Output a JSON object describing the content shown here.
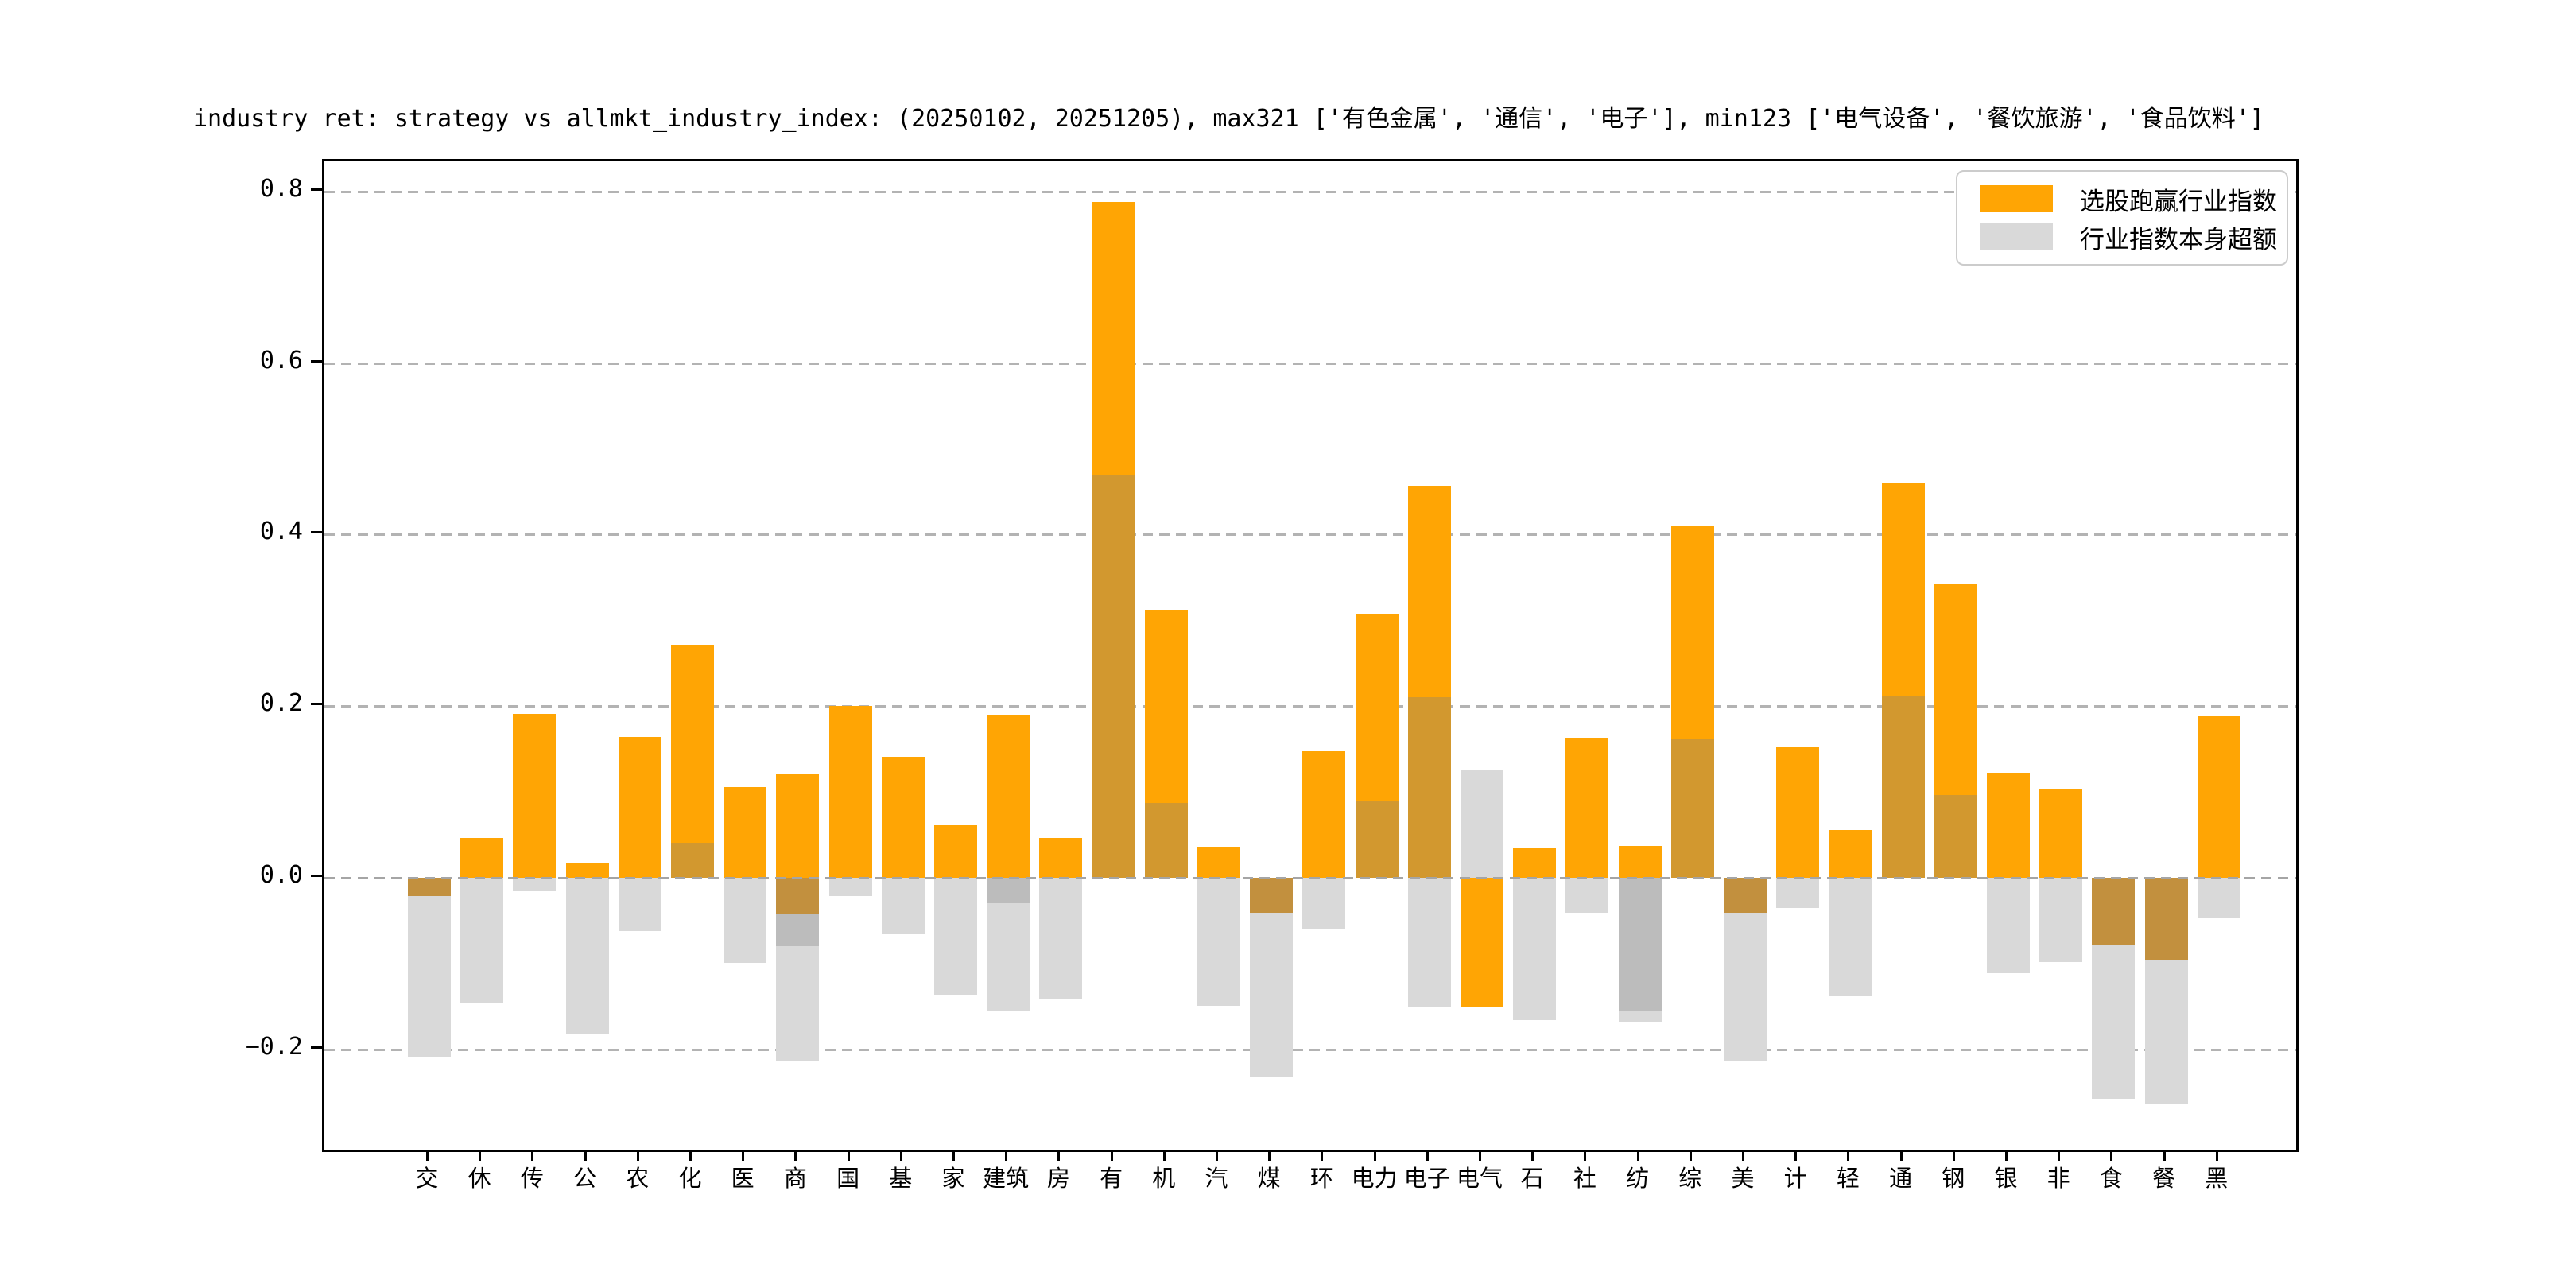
{
  "title": "industry ret: strategy vs allmkt_industry_index: (20250102, 20251205), max321 ['有色金属', '通信', '电子'], min123 ['电气设备', '餐饮旅游', '食品饮料']",
  "legend": {
    "items": [
      {
        "label": "选股跑赢行业指数",
        "color": "#FFA504"
      },
      {
        "label": "行业指数本身超额",
        "color": "#D9D9D9"
      }
    ]
  },
  "colors": {
    "orange": "#FFA504",
    "overlap_pos": "#D2982F",
    "overlap_neg": "#C2903E",
    "gray": "#D9D9D9",
    "gray_dark": "#BCBCBC",
    "grid": "#B3B3B3",
    "zero_line": "#A5A5A5",
    "spine": "#000000",
    "text": "#000000",
    "legend_border": "#CCCCCC"
  },
  "chart_data": {
    "type": "bar",
    "title": "industry ret: strategy vs allmkt_industry_index: (20250102, 20251205), max321 ['有色金属', '通信', '电子'], min123 ['电气设备', '餐饮旅游', '食品饮料']",
    "xlabel": "",
    "ylabel": "",
    "ylim": [
      -0.317,
      0.835
    ],
    "grid": "horizontal dashed",
    "legend_position": "upper right",
    "y_ticks": [
      0.8,
      0.6,
      0.4,
      0.2,
      0.0,
      -0.2
    ],
    "y_tick_labels": [
      "0.8",
      "0.6",
      "0.4",
      "0.2",
      "0.0",
      "−0.2"
    ],
    "categories": [
      "交",
      "休",
      "传",
      "公",
      "农",
      "化",
      "医",
      "商",
      "国",
      "基",
      "家",
      "建筑",
      "房",
      "有",
      "机",
      "汽",
      "煤",
      "环",
      "电力",
      "电子",
      "电气",
      "石",
      "社",
      "纺",
      "综",
      "美",
      "计",
      "轻",
      "通",
      "钢",
      "银",
      "非",
      "食",
      "餐",
      "黑"
    ],
    "series": [
      {
        "name": "选股跑赢行业指数",
        "values": [
          -0.021,
          0.046,
          0.191,
          0.018,
          0.164,
          0.272,
          0.106,
          0.121,
          0.2,
          0.141,
          0.061,
          0.19,
          0.046,
          0.788,
          0.312,
          0.036,
          -0.041,
          0.148,
          0.308,
          0.457,
          -0.15,
          0.035,
          0.163,
          0.037,
          0.41,
          -0.041,
          0.152,
          0.056,
          0.46,
          0.342,
          0.122,
          0.104,
          -0.078,
          -0.095,
          0.189
        ]
      },
      {
        "name": "行业指数本身超额",
        "values": [
          -0.209,
          -0.146,
          -0.016,
          -0.183,
          -0.062,
          0.041,
          -0.099,
          -0.214,
          -0.021,
          -0.066,
          -0.137,
          -0.155,
          -0.142,
          0.469,
          0.087,
          -0.149,
          -0.06,
          -0.233,
          0.09,
          0.21,
          0.125,
          -0.166,
          -0.041,
          -0.169,
          0.162,
          -0.214,
          -0.035,
          -0.138,
          0.211,
          0.096,
          -0.111,
          -0.098,
          -0.258,
          -0.264,
          -0.046
        ]
      }
    ],
    "bars": [
      {
        "label": "交",
        "segments": [
          [
            "on",
            -0.021,
            0
          ],
          [
            "g",
            -0.209,
            -0.021
          ]
        ]
      },
      {
        "label": "休",
        "segments": [
          [
            "o",
            0,
            0.046
          ],
          [
            "g",
            -0.146,
            0
          ]
        ]
      },
      {
        "label": "传",
        "segments": [
          [
            "o",
            0,
            0.191
          ],
          [
            "g",
            -0.016,
            0
          ]
        ]
      },
      {
        "label": "公",
        "segments": [
          [
            "o",
            0,
            0.018
          ],
          [
            "g",
            -0.183,
            0
          ]
        ]
      },
      {
        "label": "农",
        "segments": [
          [
            "o",
            0,
            0.164
          ],
          [
            "g",
            -0.062,
            0
          ]
        ]
      },
      {
        "label": "化",
        "segments": [
          [
            "op",
            0,
            0.041
          ],
          [
            "o",
            0.041,
            0.272
          ]
        ]
      },
      {
        "label": "医",
        "segments": [
          [
            "o",
            0,
            0.106
          ],
          [
            "g",
            -0.099,
            0
          ]
        ]
      },
      {
        "label": "商",
        "segments": [
          [
            "o",
            0,
            0.121
          ],
          [
            "on",
            -0.043,
            0
          ],
          [
            "gd",
            -0.08,
            -0.043
          ],
          [
            "g",
            -0.214,
            -0.08
          ]
        ]
      },
      {
        "label": "国",
        "segments": [
          [
            "o",
            0,
            0.2
          ],
          [
            "g",
            -0.021,
            0
          ]
        ]
      },
      {
        "label": "基",
        "segments": [
          [
            "o",
            0,
            0.141
          ],
          [
            "g",
            -0.066,
            0
          ]
        ]
      },
      {
        "label": "家",
        "segments": [
          [
            "o",
            0,
            0.061
          ],
          [
            "g",
            -0.137,
            0
          ]
        ]
      },
      {
        "label": "建筑",
        "segments": [
          [
            "o",
            0,
            0.19
          ],
          [
            "gd",
            -0.03,
            0
          ],
          [
            "g",
            -0.155,
            -0.03
          ]
        ]
      },
      {
        "label": "房",
        "segments": [
          [
            "o",
            0,
            0.046
          ],
          [
            "g",
            -0.142,
            0
          ]
        ]
      },
      {
        "label": "有",
        "segments": [
          [
            "op",
            0,
            0.469
          ],
          [
            "o",
            0.469,
            0.788
          ]
        ]
      },
      {
        "label": "机",
        "segments": [
          [
            "op",
            0,
            0.087
          ],
          [
            "o",
            0.087,
            0.312
          ]
        ]
      },
      {
        "label": "汽",
        "segments": [
          [
            "o",
            0,
            0.036
          ],
          [
            "g",
            -0.149,
            0
          ]
        ]
      },
      {
        "label": "煤",
        "segments": [
          [
            "on",
            -0.041,
            0
          ],
          [
            "g",
            -0.233,
            -0.041
          ]
        ]
      },
      {
        "label": "环",
        "segments": [
          [
            "o",
            0,
            0.148
          ],
          [
            "g",
            -0.06,
            0
          ]
        ]
      },
      {
        "label": "电力",
        "segments": [
          [
            "op",
            0,
            0.09
          ],
          [
            "o",
            0.09,
            0.308
          ]
        ]
      },
      {
        "label": "电子",
        "segments": [
          [
            "op",
            0,
            0.21
          ],
          [
            "o",
            0.21,
            0.457
          ],
          [
            "g",
            -0.15,
            0
          ]
        ]
      },
      {
        "label": "电气",
        "segments": [
          [
            "g",
            0,
            0.125
          ],
          [
            "o",
            -0.15,
            0
          ]
        ]
      },
      {
        "label": "石",
        "segments": [
          [
            "o",
            0,
            0.035
          ],
          [
            "g",
            -0.166,
            0
          ]
        ]
      },
      {
        "label": "社",
        "segments": [
          [
            "o",
            0,
            0.163
          ],
          [
            "g",
            -0.041,
            0
          ]
        ]
      },
      {
        "label": "纺",
        "segments": [
          [
            "o",
            0,
            0.037
          ],
          [
            "gd",
            -0.155,
            0
          ],
          [
            "g",
            -0.169,
            -0.155
          ]
        ]
      },
      {
        "label": "综",
        "segments": [
          [
            "op",
            0,
            0.162
          ],
          [
            "o",
            0.162,
            0.41
          ]
        ]
      },
      {
        "label": "美",
        "segments": [
          [
            "on",
            -0.041,
            0
          ],
          [
            "g",
            -0.214,
            -0.041
          ]
        ]
      },
      {
        "label": "计",
        "segments": [
          [
            "o",
            0,
            0.152
          ],
          [
            "g",
            -0.035,
            0
          ]
        ]
      },
      {
        "label": "轻",
        "segments": [
          [
            "o",
            0,
            0.056
          ],
          [
            "g",
            -0.138,
            0
          ]
        ]
      },
      {
        "label": "通",
        "segments": [
          [
            "op",
            0,
            0.211
          ],
          [
            "o",
            0.211,
            0.46
          ]
        ]
      },
      {
        "label": "钢",
        "segments": [
          [
            "op",
            0,
            0.096
          ],
          [
            "o",
            0.096,
            0.342
          ]
        ]
      },
      {
        "label": "银",
        "segments": [
          [
            "o",
            0,
            0.122
          ],
          [
            "g",
            -0.111,
            0
          ]
        ]
      },
      {
        "label": "非",
        "segments": [
          [
            "o",
            0,
            0.104
          ],
          [
            "g",
            -0.098,
            0
          ]
        ]
      },
      {
        "label": "食",
        "segments": [
          [
            "on",
            -0.078,
            0
          ],
          [
            "g",
            -0.258,
            -0.078
          ]
        ]
      },
      {
        "label": "餐",
        "segments": [
          [
            "on",
            -0.095,
            0
          ],
          [
            "g",
            -0.264,
            -0.095
          ]
        ]
      },
      {
        "label": "黑",
        "segments": [
          [
            "o",
            0,
            0.189
          ],
          [
            "g",
            -0.046,
            0
          ]
        ]
      }
    ]
  }
}
